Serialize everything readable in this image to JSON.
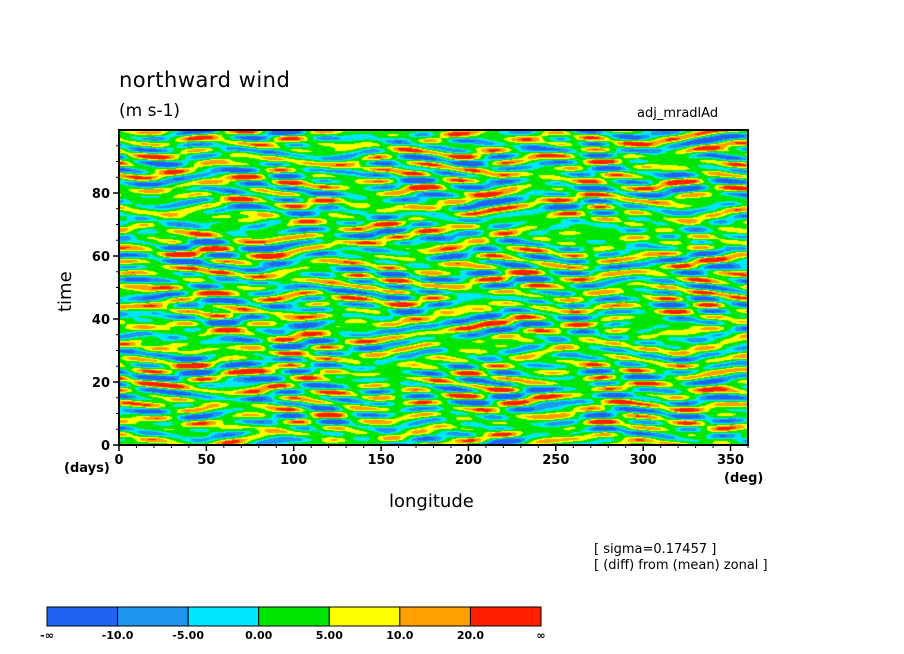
{
  "chart_data": {
    "type": "heatmap",
    "title": "northward wind",
    "units": "(m s-1)",
    "experiment": "adj_mradlAd",
    "xlabel": "longitude",
    "ylabel": "time",
    "x_unit": "(deg)",
    "y_unit": "(days)",
    "xlim": [
      0,
      360
    ],
    "ylim": [
      0,
      100
    ],
    "xticks": [
      "0",
      "50",
      "100",
      "150",
      "200",
      "250",
      "300",
      "350"
    ],
    "yticks": [
      "0",
      "20",
      "40",
      "60",
      "80"
    ],
    "annotations": [
      "[ sigma=0.17457 ]",
      "[ (diff) from (mean) zonal ]"
    ],
    "colorbar": {
      "labels": [
        "-∞",
        "-10.0",
        "-5.00",
        "0.00",
        "5.00",
        "10.0",
        "20.0",
        "∞"
      ],
      "colors": [
        "#1e64f0",
        "#1e96f0",
        "#00e6ff",
        "#00e600",
        "#ffff00",
        "#ffa000",
        "#ff2000"
      ]
    }
  }
}
